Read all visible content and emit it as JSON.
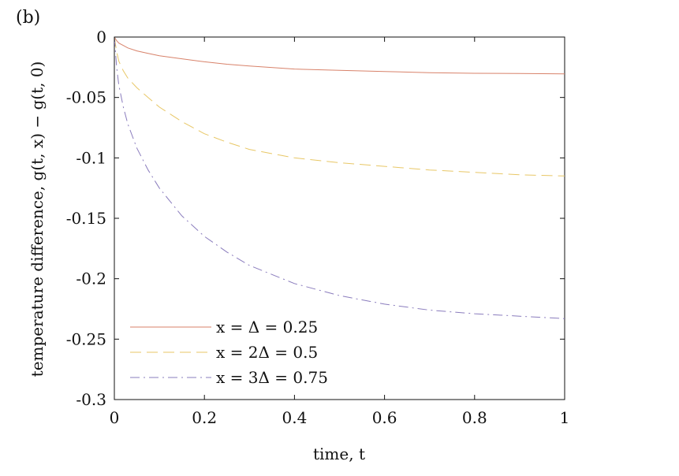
{
  "panel_label": "(b)",
  "colors": {
    "series1": "#d8826a",
    "series2": "#e8c766",
    "series3": "#8a7cbd",
    "axis": "#111111"
  },
  "chart_data": {
    "type": "line",
    "title": "",
    "xlabel": "time, t",
    "ylabel": "temperature difference, g(t, x) − g(t, 0)",
    "xlim": [
      0,
      1
    ],
    "ylim": [
      -0.3,
      0
    ],
    "xticks": [
      0,
      0.2,
      0.4,
      0.6,
      0.8,
      1
    ],
    "xtick_labels": [
      "0",
      "0.2",
      "0.4",
      "0.6",
      "0.8",
      "1"
    ],
    "yticks": [
      0,
      -0.05,
      -0.1,
      -0.15,
      -0.2,
      -0.25,
      -0.3
    ],
    "ytick_labels": [
      "0",
      "-0.05",
      "-0.1",
      "-0.15",
      "-0.2",
      "-0.25",
      "-0.3"
    ],
    "grid": false,
    "legend_position": "bottom-left",
    "x": [
      0,
      0.005,
      0.01,
      0.02,
      0.03,
      0.05,
      0.075,
      0.1,
      0.15,
      0.2,
      0.25,
      0.3,
      0.4,
      0.5,
      0.6,
      0.7,
      0.8,
      0.9,
      1.0
    ],
    "series": [
      {
        "name": "x = Δ = 0.25",
        "style": "solid",
        "values": [
          0,
          -0.003,
          -0.005,
          -0.007,
          -0.009,
          -0.0115,
          -0.0135,
          -0.0155,
          -0.018,
          -0.0205,
          -0.0225,
          -0.024,
          -0.0265,
          -0.0275,
          -0.0285,
          -0.0295,
          -0.03,
          -0.0302,
          -0.0305
        ]
      },
      {
        "name": "x = 2Δ = 0.5",
        "style": "dashed",
        "values": [
          0,
          -0.012,
          -0.02,
          -0.028,
          -0.034,
          -0.042,
          -0.05,
          -0.058,
          -0.07,
          -0.08,
          -0.087,
          -0.093,
          -0.1,
          -0.104,
          -0.107,
          -0.11,
          -0.112,
          -0.114,
          -0.115
        ]
      },
      {
        "name": "x = 3Δ = 0.75",
        "style": "dashdot",
        "values": [
          0,
          -0.025,
          -0.04,
          -0.058,
          -0.072,
          -0.092,
          -0.11,
          -0.125,
          -0.148,
          -0.165,
          -0.178,
          -0.189,
          -0.204,
          -0.214,
          -0.221,
          -0.226,
          -0.229,
          -0.231,
          -0.233
        ]
      }
    ]
  }
}
